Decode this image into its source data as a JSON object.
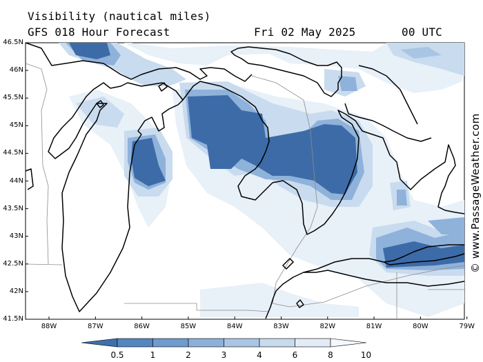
{
  "title": {
    "line1": "Visibility (nautical miles)",
    "model": "GFS 018 Hour Forecast",
    "date": "Fri 02 May 2025",
    "time": "00 UTC"
  },
  "credit": "© www.PassageWeather.com",
  "axes": {
    "lat_labels": [
      "46.5N",
      "46N",
      "45.5N",
      "45N",
      "44.5N",
      "44N",
      "43.5N",
      "43N",
      "42.5N",
      "42N",
      "41.5N"
    ],
    "lon_labels": [
      "88W",
      "87W",
      "86W",
      "85W",
      "84W",
      "83W",
      "82W",
      "81W",
      "80W",
      "79W"
    ]
  },
  "colorbar": {
    "labels": [
      "0.5",
      "1",
      "2",
      "3",
      "4",
      "6",
      "8",
      "10"
    ],
    "colors": [
      "#3f6fad",
      "#5486c0",
      "#6f9bcd",
      "#8cb0d9",
      "#a9c5e4",
      "#c8daee",
      "#e2ebf6",
      "#f4f8fc"
    ]
  },
  "map_colors": {
    "dense": "#3d6ba8",
    "mid": "#8fb2da",
    "light": "#c9dbee",
    "faint": "#e8f0f8"
  }
}
